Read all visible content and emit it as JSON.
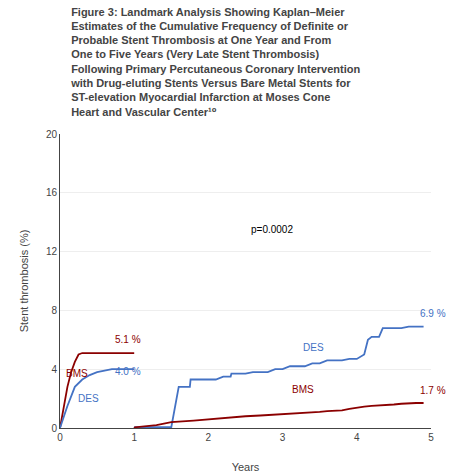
{
  "chart_data": {
    "type": "line",
    "title": [
      "Figure 3: Landmark Analysis Showing Kaplan–Meier",
      "Estimates of the Cumulative Frequency of Definite or",
      "Probable Stent Thrombosis at One Year and From",
      "One to Five Years (Very Late Stent Thrombosis)",
      "Following Primary Percutaneous Coronary Intervention",
      "with Drug-eluting Stents Versus Bare Metal Stents for",
      "ST-elevation Myocardial Infarction at Moses Cone",
      "Heart and Vascular Center¹⁰"
    ],
    "xlabel": "Years",
    "ylabel": "Stent thrombosis (%)",
    "xlim": [
      0,
      5
    ],
    "ylim": [
      0,
      20
    ],
    "xticks": [
      0,
      1,
      2,
      3,
      4,
      5
    ],
    "yticks": [
      0,
      4,
      8,
      12,
      16,
      20
    ],
    "grid": "y",
    "series": [
      {
        "color": "#8B0000",
        "x": [
          0,
          0.03,
          0.06,
          0.1,
          0.15,
          0.2,
          0.25,
          0.3,
          0.4,
          0.5,
          0.6,
          0.7,
          0.8,
          0.9,
          1.0
        ],
        "values": [
          0,
          0.8,
          1.8,
          2.8,
          3.8,
          4.5,
          5.0,
          5.1,
          5.1,
          5.1,
          5.1,
          5.1,
          5.1,
          5.1,
          5.1
        ]
      },
      {
        "color": "#4472c4",
        "x": [
          0,
          0.03,
          0.06,
          0.1,
          0.15,
          0.2,
          0.3,
          0.4,
          0.5,
          0.6,
          0.7,
          0.8,
          0.9,
          1.0
        ],
        "values": [
          0,
          0.4,
          0.9,
          1.5,
          2.2,
          2.8,
          3.3,
          3.6,
          3.8,
          3.9,
          4.0,
          4.0,
          4.0,
          4.0
        ]
      },
      {
        "color": "#4472c4",
        "x": [
          1.0,
          1.01,
          1.5,
          1.6,
          1.75,
          1.76,
          2.1,
          2.2,
          2.3,
          2.31,
          2.5,
          2.6,
          2.8,
          2.9,
          3.0,
          3.1,
          3.3,
          3.4,
          3.5,
          3.6,
          3.8,
          3.9,
          4.0,
          4.1,
          4.15,
          4.2,
          4.3,
          4.35,
          4.6,
          4.7,
          4.8,
          4.9
        ],
        "values": [
          0.0,
          0.05,
          0.05,
          2.8,
          2.8,
          3.3,
          3.3,
          3.5,
          3.5,
          3.7,
          3.7,
          3.8,
          3.8,
          4.0,
          4.0,
          4.2,
          4.2,
          4.4,
          4.4,
          4.6,
          4.6,
          4.7,
          4.7,
          5.0,
          6.0,
          6.2,
          6.2,
          6.8,
          6.8,
          6.9,
          6.9,
          6.9
        ]
      },
      {
        "color": "#8B0000",
        "x": [
          1.0,
          1.01,
          1.3,
          1.5,
          1.8,
          2.0,
          2.2,
          2.3,
          2.5,
          2.7,
          2.9,
          3.0,
          3.2,
          3.4,
          3.5,
          3.6,
          3.8,
          3.9,
          4.0,
          4.1,
          4.2,
          4.3,
          4.5,
          4.6,
          4.7,
          4.8,
          4.9
        ],
        "values": [
          0.0,
          0.05,
          0.2,
          0.4,
          0.5,
          0.6,
          0.7,
          0.75,
          0.8,
          0.85,
          0.9,
          0.95,
          1.0,
          1.05,
          1.1,
          1.15,
          1.2,
          1.3,
          1.4,
          1.45,
          1.5,
          1.55,
          1.6,
          1.65,
          1.7,
          1.7,
          1.7
        ]
      }
    ],
    "annotations": [
      {
        "text": "BMS",
        "x": 0.05,
        "y": 3.2,
        "color": "#8B0000"
      },
      {
        "text": "DES",
        "x": 0.22,
        "y": 1.5,
        "color": "#4472c4"
      },
      {
        "text": "5.1 %",
        "x": 0.72,
        "y": 5.5,
        "color": "#8B0000"
      },
      {
        "text": "4.0 %",
        "x": 0.72,
        "y": 3.3,
        "color": "#4472c4"
      },
      {
        "text": "DES",
        "x": 3.25,
        "y": 5.0,
        "color": "#4472c4"
      },
      {
        "text": "BMS",
        "x": 3.1,
        "y": 2.1,
        "color": "#8B0000"
      },
      {
        "text": "6.9 %",
        "x": 4.82,
        "y": 7.3,
        "color": "#4472c4"
      },
      {
        "text": "1.7 %",
        "x": 4.82,
        "y": 2.05,
        "color": "#8B0000"
      },
      {
        "text": "p=0.0002",
        "x": 2.55,
        "y": 13.0,
        "color": "#000000"
      }
    ]
  }
}
